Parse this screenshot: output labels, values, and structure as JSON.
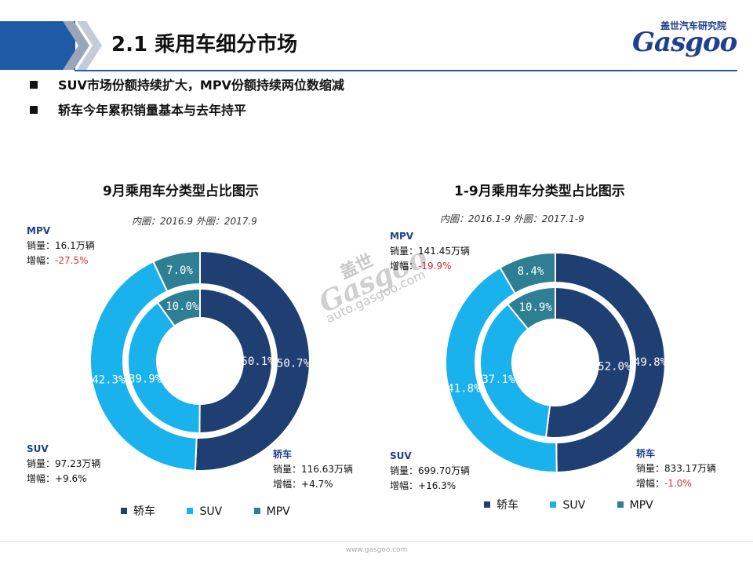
{
  "header": {
    "title": "2.1  乘用车细分市场",
    "logo_cn": "盖世汽车研究院",
    "logo_en": "Gasgoo",
    "brand_color": "#1f5aa6"
  },
  "bullets": [
    "SUV市场份额持续扩大，MPV份额持续两位数缩减",
    "轿车今年累积销量基本与去年持平"
  ],
  "watermark": {
    "cn": "盖世",
    "en": "Gasgoo",
    "url": "auto.gasgoo.com"
  },
  "footer": {
    "url": "www.gasgoo.com"
  },
  "colors": {
    "sedan": "#1f3f73",
    "suv": "#1ab2ec",
    "mpv": "#2e7e94",
    "negative": "#e03030"
  },
  "legend": [
    "轿车",
    "SUV",
    "MPV"
  ],
  "chart_data": [
    {
      "type": "pie",
      "title": "9月乘用车分类型占比图示",
      "subtitle": "内圈：2016.9 外圈：2017.9",
      "categories": [
        "轿车",
        "SUV",
        "MPV"
      ],
      "series": [
        {
          "name": "2016.9",
          "values": [
            50.1,
            39.9,
            10.0
          ],
          "labels": [
            "50.1%",
            "39.9%",
            "10.0%"
          ]
        },
        {
          "name": "2017.9",
          "values": [
            50.7,
            42.3,
            7.0
          ],
          "labels": [
            "50.7%",
            "42.3%",
            "7.0%"
          ]
        }
      ],
      "annotations": [
        {
          "category": "MPV",
          "sales_label": "销量：16.1万辆",
          "growth_label": "增幅：",
          "growth": "-27.5%",
          "negative": true
        },
        {
          "category": "SUV",
          "sales_label": "销量：97.23万辆",
          "growth_label": "增幅：",
          "growth": "+9.6%",
          "negative": false
        },
        {
          "category": "轿车",
          "sales_label": "销量：116.63万辆",
          "growth_label": "增幅：",
          "growth": "+4.7%",
          "negative": false
        }
      ]
    },
    {
      "type": "pie",
      "title": "1-9月乘用车分类型占比图示",
      "subtitle": "内圈：2016.1-9      外圈：2017.1-9",
      "categories": [
        "轿车",
        "SUV",
        "MPV"
      ],
      "series": [
        {
          "name": "2016.1-9",
          "values": [
            52.0,
            37.1,
            10.9
          ],
          "labels": [
            "52.0%",
            "37.1%",
            "10.9%"
          ]
        },
        {
          "name": "2017.1-9",
          "values": [
            49.8,
            41.8,
            8.4
          ],
          "labels": [
            "49.8%",
            "41.8%",
            "8.4%"
          ]
        }
      ],
      "annotations": [
        {
          "category": "MPV",
          "sales_label": "销量：141.45万辆",
          "growth_label": "增幅：",
          "growth": "-19.9%",
          "negative": true
        },
        {
          "category": "SUV",
          "sales_label": "销量：699.70万辆",
          "growth_label": "增幅：",
          "growth": "+16.3%",
          "negative": false
        },
        {
          "category": "轿车",
          "sales_label": "销量：833.17万辆",
          "growth_label": "增幅：",
          "growth": "-1.0%",
          "negative": true
        }
      ]
    }
  ]
}
